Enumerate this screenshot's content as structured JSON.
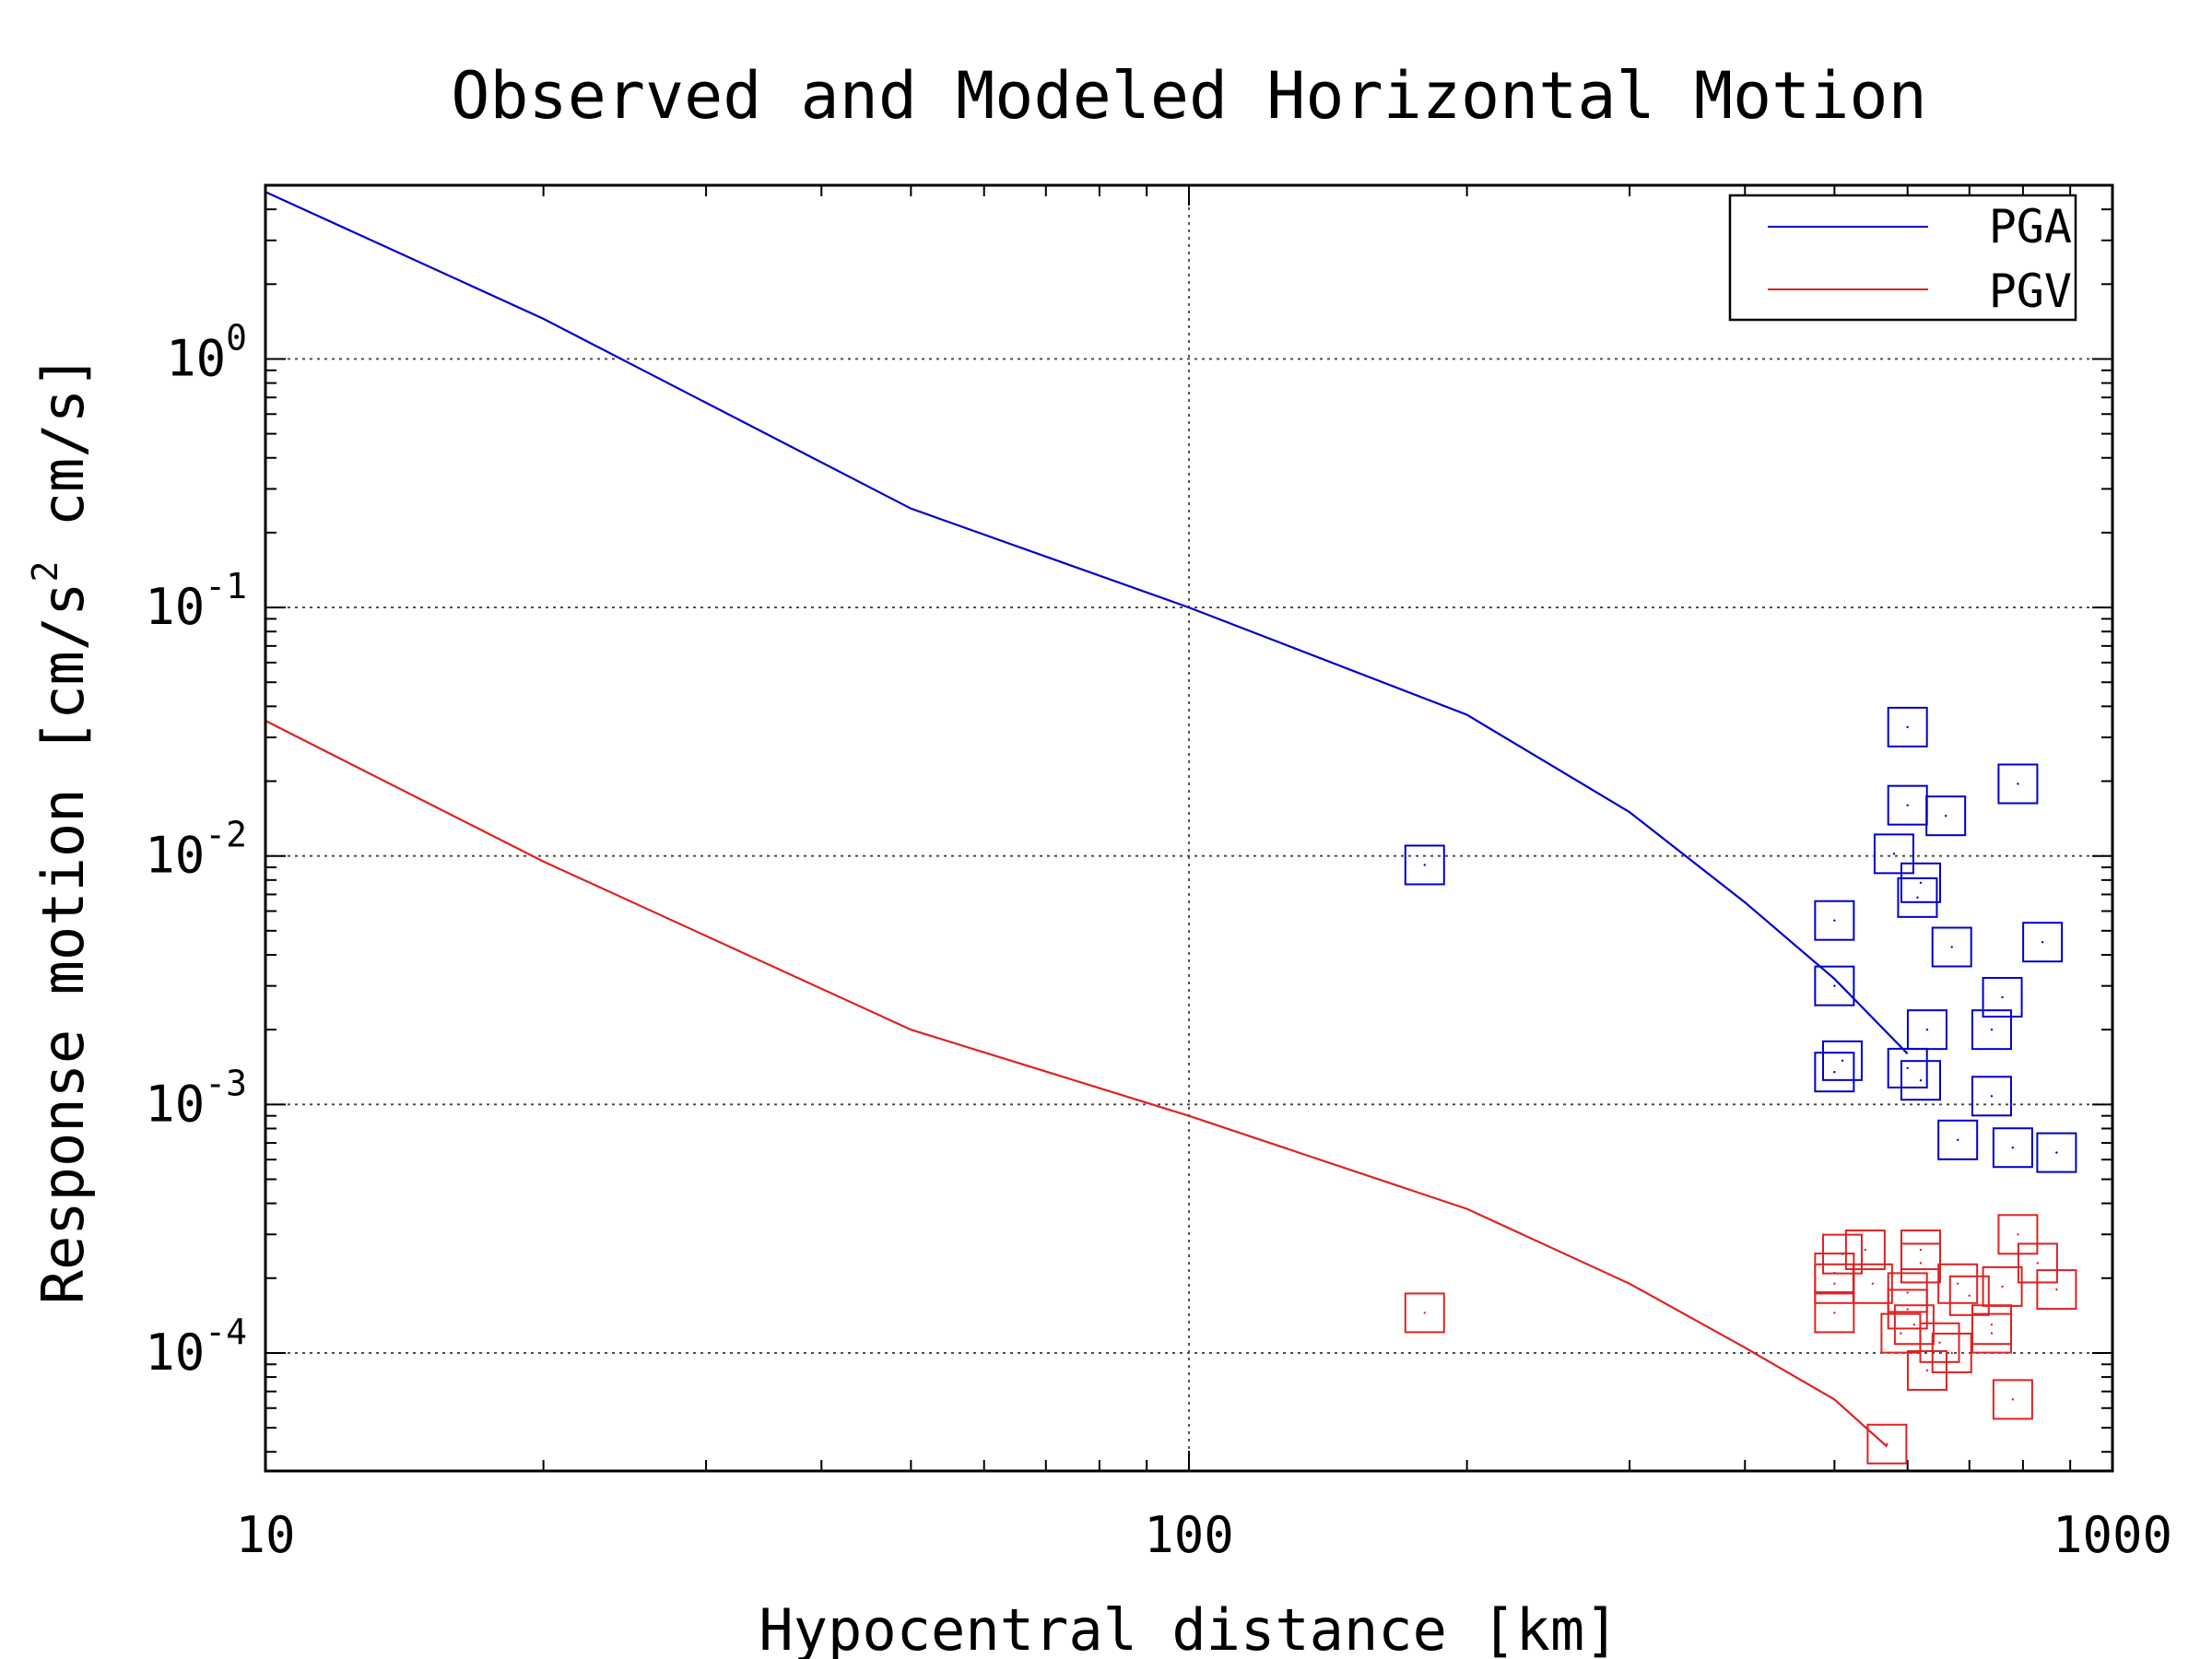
{
  "chart_data": {
    "type": "scatter",
    "title": "Observed and Modeled Horizontal Motion",
    "xlabel": "Hypocentral distance [km]",
    "ylabel_parts": {
      "prefix": "Response motion [cm/s",
      "sup": "2",
      "suffix": " cm/s]"
    },
    "x_scale": "log",
    "y_scale": "log",
    "xlim": [
      10,
      1000
    ],
    "ylim": [
      3.35e-05,
      5.0
    ],
    "x_ticks": [
      {
        "value": 10,
        "label": "10"
      },
      {
        "value": 100,
        "label": "100"
      },
      {
        "value": 1000,
        "label": "1000"
      }
    ],
    "y_ticks": [
      {
        "value": 1,
        "base": "10",
        "exp": "0"
      },
      {
        "value": 0.1,
        "base": "10",
        "exp": "-1"
      },
      {
        "value": 0.01,
        "base": "10",
        "exp": "-2"
      },
      {
        "value": 0.001,
        "base": "10",
        "exp": "-3"
      },
      {
        "value": 0.0001,
        "base": "10",
        "exp": "-4"
      }
    ],
    "grid": true,
    "legend_position": "top-right",
    "series": [
      {
        "name": "PGA",
        "color": "#0000cc",
        "line": [
          [
            10,
            4.7
          ],
          [
            20,
            1.45
          ],
          [
            50,
            0.25
          ],
          [
            100,
            0.1
          ],
          [
            200,
            0.037
          ],
          [
            300,
            0.015
          ],
          [
            400,
            0.0065
          ],
          [
            500,
            0.0032
          ],
          [
            600,
            0.0016
          ]
        ],
        "points": [
          [
            180,
            0.0092
          ],
          [
            600,
            0.033
          ],
          [
            600,
            0.016
          ],
          [
            580,
            0.0102
          ],
          [
            620,
            0.0078
          ],
          [
            615,
            0.0068
          ],
          [
            500,
            0.0055
          ],
          [
            660,
            0.0145
          ],
          [
            790,
            0.0195
          ],
          [
            670,
            0.0043
          ],
          [
            840,
            0.0045
          ],
          [
            500,
            0.003
          ],
          [
            630,
            0.002
          ],
          [
            760,
            0.0027
          ],
          [
            740,
            0.002
          ],
          [
            510,
            0.0015
          ],
          [
            500,
            0.00135
          ],
          [
            600,
            0.0014
          ],
          [
            620,
            0.00125
          ],
          [
            740,
            0.00108
          ],
          [
            680,
            0.00072
          ],
          [
            780,
            0.00067
          ],
          [
            870,
            0.00064
          ]
        ]
      },
      {
        "name": "PGV",
        "color": "#dd2222",
        "line": [
          [
            10,
            0.035
          ],
          [
            20,
            0.0095
          ],
          [
            50,
            0.002
          ],
          [
            100,
            0.0009
          ],
          [
            200,
            0.00038
          ],
          [
            300,
            0.00019
          ],
          [
            400,
            0.000105
          ],
          [
            500,
            6.5e-05
          ],
          [
            570,
            4.2e-05
          ]
        ],
        "points": [
          [
            180,
            0.000145
          ],
          [
            570,
            4.3e-05
          ],
          [
            500,
            0.00021
          ],
          [
            510,
            0.00025
          ],
          [
            540,
            0.00026
          ],
          [
            500,
            0.000145
          ],
          [
            500,
            0.00019
          ],
          [
            550,
            0.00019
          ],
          [
            600,
            0.000175
          ],
          [
            620,
            0.00026
          ],
          [
            620,
            0.00023
          ],
          [
            600,
            0.00015
          ],
          [
            610,
            0.00013
          ],
          [
            590,
            0.00012
          ],
          [
            650,
            0.00011
          ],
          [
            670,
            0.0001
          ],
          [
            630,
            8.5e-05
          ],
          [
            680,
            0.00019
          ],
          [
            700,
            0.00017
          ],
          [
            740,
            0.00013
          ],
          [
            740,
            0.00012
          ],
          [
            760,
            0.000185
          ],
          [
            790,
            0.0003
          ],
          [
            830,
            0.00023
          ],
          [
            780,
            6.5e-05
          ],
          [
            870,
            0.00018
          ]
        ]
      }
    ]
  }
}
